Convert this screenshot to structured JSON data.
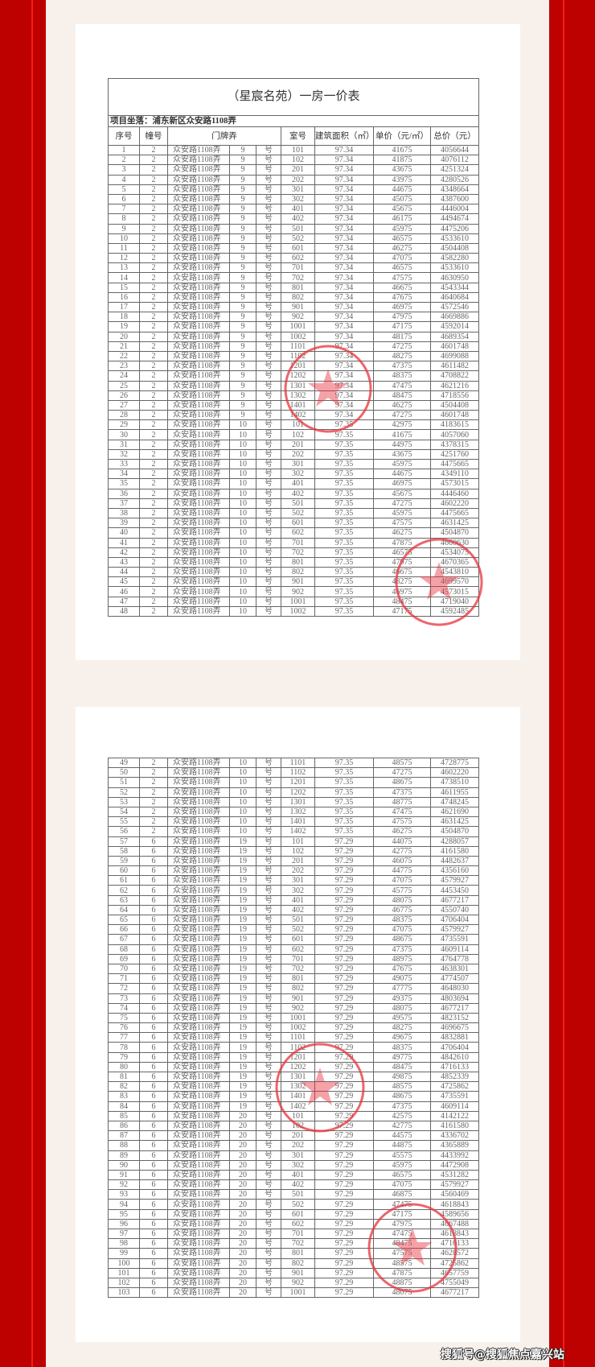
{
  "document": {
    "title": "（星宸名苑）一房一价表",
    "project_location": "项目坐落：浦东新区众安路1108弄",
    "columns": [
      "序号",
      "幢号",
      "门牌弄",
      "室号",
      "建筑面积（㎡）",
      "单价（元/㎡）",
      "总价（元）"
    ],
    "stamp_color": "#e8323c",
    "rows": [
      [
        "1",
        "2",
        "众安路1108弄",
        "9",
        "号",
        "101",
        "97.34",
        "41675",
        "4056644"
      ],
      [
        "2",
        "2",
        "众安路1108弄",
        "9",
        "号",
        "102",
        "97.34",
        "41875",
        "4076112"
      ],
      [
        "3",
        "2",
        "众安路1108弄",
        "9",
        "号",
        "201",
        "97.34",
        "43675",
        "4251324"
      ],
      [
        "4",
        "2",
        "众安路1108弄",
        "9",
        "号",
        "202",
        "97.34",
        "43975",
        "4280526"
      ],
      [
        "5",
        "2",
        "众安路1108弄",
        "9",
        "号",
        "301",
        "97.34",
        "44675",
        "4348664"
      ],
      [
        "6",
        "2",
        "众安路1108弄",
        "9",
        "号",
        "302",
        "97.34",
        "45075",
        "4387600"
      ],
      [
        "7",
        "2",
        "众安路1108弄",
        "9",
        "号",
        "401",
        "97.34",
        "45675",
        "4446004"
      ],
      [
        "8",
        "2",
        "众安路1108弄",
        "9",
        "号",
        "402",
        "97.34",
        "46175",
        "4494674"
      ],
      [
        "9",
        "2",
        "众安路1108弄",
        "9",
        "号",
        "501",
        "97.34",
        "45975",
        "4475206"
      ],
      [
        "10",
        "2",
        "众安路1108弄",
        "9",
        "号",
        "502",
        "97.34",
        "46575",
        "4533610"
      ],
      [
        "11",
        "2",
        "众安路1108弄",
        "9",
        "号",
        "601",
        "97.34",
        "46275",
        "4504408"
      ],
      [
        "12",
        "2",
        "众安路1108弄",
        "9",
        "号",
        "602",
        "97.34",
        "47075",
        "4582280"
      ],
      [
        "13",
        "2",
        "众安路1108弄",
        "9",
        "号",
        "701",
        "97.34",
        "46575",
        "4533610"
      ],
      [
        "14",
        "2",
        "众安路1108弄",
        "9",
        "号",
        "702",
        "97.34",
        "47575",
        "4630950"
      ],
      [
        "15",
        "2",
        "众安路1108弄",
        "9",
        "号",
        "801",
        "97.34",
        "46675",
        "4543344"
      ],
      [
        "16",
        "2",
        "众安路1108弄",
        "9",
        "号",
        "802",
        "97.34",
        "47675",
        "4640684"
      ],
      [
        "17",
        "2",
        "众安路1108弄",
        "9",
        "号",
        "901",
        "97.34",
        "46975",
        "4572546"
      ],
      [
        "18",
        "2",
        "众安路1108弄",
        "9",
        "号",
        "902",
        "97.34",
        "47975",
        "4669886"
      ],
      [
        "19",
        "2",
        "众安路1108弄",
        "9",
        "号",
        "1001",
        "97.34",
        "47175",
        "4592014"
      ],
      [
        "20",
        "2",
        "众安路1108弄",
        "9",
        "号",
        "1002",
        "97.34",
        "48175",
        "4689354"
      ],
      [
        "21",
        "2",
        "众安路1108弄",
        "9",
        "号",
        "1101",
        "97.34",
        "47275",
        "4601748"
      ],
      [
        "22",
        "2",
        "众安路1108弄",
        "9",
        "号",
        "1102",
        "97.34",
        "48275",
        "4699088"
      ],
      [
        "23",
        "2",
        "众安路1108弄",
        "9",
        "号",
        "1201",
        "97.34",
        "47375",
        "4611482"
      ],
      [
        "24",
        "2",
        "众安路1108弄",
        "9",
        "号",
        "1202",
        "97.34",
        "48375",
        "4708822"
      ],
      [
        "25",
        "2",
        "众安路1108弄",
        "9",
        "号",
        "1301",
        "97.34",
        "47475",
        "4621216"
      ],
      [
        "26",
        "2",
        "众安路1108弄",
        "9",
        "号",
        "1302",
        "97.34",
        "48475",
        "4718556"
      ],
      [
        "27",
        "2",
        "众安路1108弄",
        "9",
        "号",
        "1401",
        "97.34",
        "46275",
        "4504408"
      ],
      [
        "28",
        "2",
        "众安路1108弄",
        "9",
        "号",
        "1402",
        "97.34",
        "47275",
        "4601748"
      ],
      [
        "29",
        "2",
        "众安路1108弄",
        "10",
        "号",
        "101",
        "97.35",
        "42975",
        "4183615"
      ],
      [
        "30",
        "2",
        "众安路1108弄",
        "10",
        "号",
        "102",
        "97.35",
        "41675",
        "4057060"
      ],
      [
        "31",
        "2",
        "众安路1108弄",
        "10",
        "号",
        "201",
        "97.35",
        "44975",
        "4378315"
      ],
      [
        "32",
        "2",
        "众安路1108弄",
        "10",
        "号",
        "202",
        "97.35",
        "43675",
        "4251760"
      ],
      [
        "33",
        "2",
        "众安路1108弄",
        "10",
        "号",
        "301",
        "97.35",
        "45975",
        "4475665"
      ],
      [
        "34",
        "2",
        "众安路1108弄",
        "10",
        "号",
        "302",
        "97.35",
        "44675",
        "4349110"
      ],
      [
        "35",
        "2",
        "众安路1108弄",
        "10",
        "号",
        "401",
        "97.35",
        "46975",
        "4573015"
      ],
      [
        "36",
        "2",
        "众安路1108弄",
        "10",
        "号",
        "402",
        "97.35",
        "45675",
        "4446460"
      ],
      [
        "37",
        "2",
        "众安路1108弄",
        "10",
        "号",
        "501",
        "97.35",
        "47275",
        "4602220"
      ],
      [
        "38",
        "2",
        "众安路1108弄",
        "10",
        "号",
        "502",
        "97.35",
        "45975",
        "4475665"
      ],
      [
        "39",
        "2",
        "众安路1108弄",
        "10",
        "号",
        "601",
        "97.35",
        "47575",
        "4631425"
      ],
      [
        "40",
        "2",
        "众安路1108弄",
        "10",
        "号",
        "602",
        "97.35",
        "46275",
        "4504870"
      ],
      [
        "41",
        "2",
        "众安路1108弄",
        "10",
        "号",
        "701",
        "97.35",
        "47875",
        "4660630"
      ],
      [
        "42",
        "2",
        "众安路1108弄",
        "10",
        "号",
        "702",
        "97.35",
        "46575",
        "4534075"
      ],
      [
        "43",
        "2",
        "众安路1108弄",
        "10",
        "号",
        "801",
        "97.35",
        "47975",
        "4670365"
      ],
      [
        "44",
        "2",
        "众安路1108弄",
        "10",
        "号",
        "802",
        "97.35",
        "46675",
        "4543810"
      ],
      [
        "45",
        "2",
        "众安路1108弄",
        "10",
        "号",
        "901",
        "97.35",
        "48275",
        "4699570"
      ],
      [
        "46",
        "2",
        "众安路1108弄",
        "10",
        "号",
        "902",
        "97.35",
        "46975",
        "4573015"
      ],
      [
        "47",
        "2",
        "众安路1108弄",
        "10",
        "号",
        "1001",
        "97.35",
        "48475",
        "4719040"
      ],
      [
        "48",
        "2",
        "众安路1108弄",
        "10",
        "号",
        "1002",
        "97.35",
        "47175",
        "4592485"
      ],
      [
        "49",
        "2",
        "众安路1108弄",
        "10",
        "号",
        "1101",
        "97.35",
        "48575",
        "4728775"
      ],
      [
        "50",
        "2",
        "众安路1108弄",
        "10",
        "号",
        "1102",
        "97.35",
        "47275",
        "4602220"
      ],
      [
        "51",
        "2",
        "众安路1108弄",
        "10",
        "号",
        "1201",
        "97.35",
        "48675",
        "4738510"
      ],
      [
        "52",
        "2",
        "众安路1108弄",
        "10",
        "号",
        "1202",
        "97.35",
        "47375",
        "4611955"
      ],
      [
        "53",
        "2",
        "众安路1108弄",
        "10",
        "号",
        "1301",
        "97.35",
        "48775",
        "4748245"
      ],
      [
        "54",
        "2",
        "众安路1108弄",
        "10",
        "号",
        "1302",
        "97.35",
        "47475",
        "4621690"
      ],
      [
        "55",
        "2",
        "众安路1108弄",
        "10",
        "号",
        "1401",
        "97.35",
        "47575",
        "4631425"
      ],
      [
        "56",
        "2",
        "众安路1108弄",
        "10",
        "号",
        "1402",
        "97.35",
        "46275",
        "4504870"
      ],
      [
        "57",
        "6",
        "众安路1108弄",
        "19",
        "号",
        "101",
        "97.29",
        "44075",
        "4288057"
      ],
      [
        "58",
        "6",
        "众安路1108弄",
        "19",
        "号",
        "102",
        "97.29",
        "42775",
        "4161580"
      ],
      [
        "59",
        "6",
        "众安路1108弄",
        "19",
        "号",
        "201",
        "97.29",
        "46075",
        "4482637"
      ],
      [
        "60",
        "6",
        "众安路1108弄",
        "19",
        "号",
        "202",
        "97.29",
        "44775",
        "4356160"
      ],
      [
        "61",
        "6",
        "众安路1108弄",
        "19",
        "号",
        "301",
        "97.29",
        "47075",
        "4579927"
      ],
      [
        "62",
        "6",
        "众安路1108弄",
        "19",
        "号",
        "302",
        "97.29",
        "45775",
        "4453450"
      ],
      [
        "63",
        "6",
        "众安路1108弄",
        "19",
        "号",
        "401",
        "97.29",
        "48075",
        "4677217"
      ],
      [
        "64",
        "6",
        "众安路1108弄",
        "19",
        "号",
        "402",
        "97.29",
        "46775",
        "4550740"
      ],
      [
        "65",
        "6",
        "众安路1108弄",
        "19",
        "号",
        "501",
        "97.29",
        "48375",
        "4706404"
      ],
      [
        "66",
        "6",
        "众安路1108弄",
        "19",
        "号",
        "502",
        "97.29",
        "47075",
        "4579927"
      ],
      [
        "67",
        "6",
        "众安路1108弄",
        "19",
        "号",
        "601",
        "97.29",
        "48675",
        "4735591"
      ],
      [
        "68",
        "6",
        "众安路1108弄",
        "19",
        "号",
        "602",
        "97.29",
        "47375",
        "4609114"
      ],
      [
        "69",
        "6",
        "众安路1108弄",
        "19",
        "号",
        "701",
        "97.29",
        "48975",
        "4764778"
      ],
      [
        "70",
        "6",
        "众安路1108弄",
        "19",
        "号",
        "702",
        "97.29",
        "47675",
        "4638301"
      ],
      [
        "71",
        "6",
        "众安路1108弄",
        "19",
        "号",
        "801",
        "97.29",
        "49075",
        "4774507"
      ],
      [
        "72",
        "6",
        "众安路1108弄",
        "19",
        "号",
        "802",
        "97.29",
        "47775",
        "4648030"
      ],
      [
        "73",
        "6",
        "众安路1108弄",
        "19",
        "号",
        "901",
        "97.29",
        "49375",
        "4803694"
      ],
      [
        "74",
        "6",
        "众安路1108弄",
        "19",
        "号",
        "902",
        "97.29",
        "48075",
        "4677217"
      ],
      [
        "75",
        "6",
        "众安路1108弄",
        "19",
        "号",
        "1001",
        "97.29",
        "49575",
        "4823152"
      ],
      [
        "76",
        "6",
        "众安路1108弄",
        "19",
        "号",
        "1002",
        "97.29",
        "48275",
        "4696675"
      ],
      [
        "77",
        "6",
        "众安路1108弄",
        "19",
        "号",
        "1101",
        "97.29",
        "49675",
        "4832881"
      ],
      [
        "78",
        "6",
        "众安路1108弄",
        "19",
        "号",
        "1102",
        "97.29",
        "48375",
        "4706404"
      ],
      [
        "79",
        "6",
        "众安路1108弄",
        "19",
        "号",
        "1201",
        "97.29",
        "49775",
        "4842610"
      ],
      [
        "80",
        "6",
        "众安路1108弄",
        "19",
        "号",
        "1202",
        "97.29",
        "48475",
        "4716133"
      ],
      [
        "81",
        "6",
        "众安路1108弄",
        "19",
        "号",
        "1301",
        "97.29",
        "49875",
        "4852339"
      ],
      [
        "82",
        "6",
        "众安路1108弄",
        "19",
        "号",
        "1302",
        "97.29",
        "48575",
        "4725862"
      ],
      [
        "83",
        "6",
        "众安路1108弄",
        "19",
        "号",
        "1401",
        "97.29",
        "48675",
        "4735591"
      ],
      [
        "84",
        "6",
        "众安路1108弄",
        "19",
        "号",
        "1402",
        "97.29",
        "47375",
        "4609114"
      ],
      [
        "85",
        "6",
        "众安路1108弄",
        "20",
        "号",
        "101",
        "97.29",
        "42575",
        "4142122"
      ],
      [
        "86",
        "6",
        "众安路1108弄",
        "20",
        "号",
        "102",
        "97.29",
        "42775",
        "4161580"
      ],
      [
        "87",
        "6",
        "众安路1108弄",
        "20",
        "号",
        "201",
        "97.29",
        "44575",
        "4336702"
      ],
      [
        "88",
        "6",
        "众安路1108弄",
        "20",
        "号",
        "202",
        "97.29",
        "44875",
        "4365889"
      ],
      [
        "89",
        "6",
        "众安路1108弄",
        "20",
        "号",
        "301",
        "97.29",
        "45575",
        "4433992"
      ],
      [
        "90",
        "6",
        "众安路1108弄",
        "20",
        "号",
        "302",
        "97.29",
        "45975",
        "4472908"
      ],
      [
        "91",
        "6",
        "众安路1108弄",
        "20",
        "号",
        "401",
        "97.29",
        "46575",
        "4531282"
      ],
      [
        "92",
        "6",
        "众安路1108弄",
        "20",
        "号",
        "402",
        "97.29",
        "47075",
        "4579927"
      ],
      [
        "93",
        "6",
        "众安路1108弄",
        "20",
        "号",
        "501",
        "97.29",
        "46875",
        "4560469"
      ],
      [
        "94",
        "6",
        "众安路1108弄",
        "20",
        "号",
        "502",
        "97.29",
        "47475",
        "4618843"
      ],
      [
        "95",
        "6",
        "众安路1108弄",
        "20",
        "号",
        "601",
        "97.29",
        "47175",
        "4589656"
      ],
      [
        "96",
        "6",
        "众安路1108弄",
        "20",
        "号",
        "602",
        "97.29",
        "47975",
        "4667488"
      ],
      [
        "97",
        "6",
        "众安路1108弄",
        "20",
        "号",
        "701",
        "97.29",
        "47475",
        "4618843"
      ],
      [
        "98",
        "6",
        "众安路1108弄",
        "20",
        "号",
        "702",
        "97.29",
        "48475",
        "4716133"
      ],
      [
        "99",
        "6",
        "众安路1108弄",
        "20",
        "号",
        "801",
        "97.29",
        "47575",
        "4628572"
      ],
      [
        "100",
        "6",
        "众安路1108弄",
        "20",
        "号",
        "802",
        "97.29",
        "48575",
        "4725862"
      ],
      [
        "101",
        "6",
        "众安路1108弄",
        "20",
        "号",
        "901",
        "97.29",
        "47875",
        "4657759"
      ],
      [
        "102",
        "6",
        "众安路1108弄",
        "20",
        "号",
        "902",
        "97.29",
        "48875",
        "4755049"
      ],
      [
        "103",
        "6",
        "众安路1108弄",
        "20",
        "号",
        "1001",
        "97.29",
        "48075",
        "4677217"
      ]
    ]
  },
  "watermark": "搜狐号@搜狐焦点嘉兴站",
  "frame_color": "#bd0000"
}
